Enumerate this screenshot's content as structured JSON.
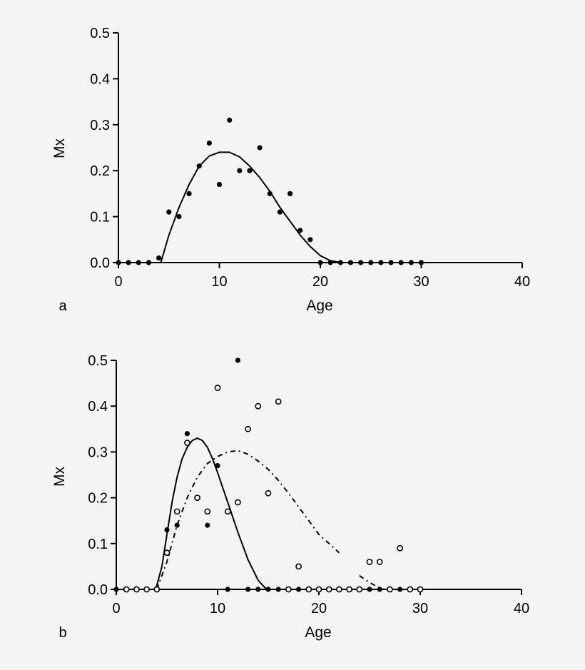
{
  "chart_data": [
    {
      "panel_label": "a",
      "type": "scatter",
      "xlabel": "Age",
      "ylabel": "Mx",
      "xlim": [
        0,
        40
      ],
      "ylim": [
        0,
        0.5
      ],
      "xticks": [
        "0",
        "10",
        "20",
        "30",
        "40"
      ],
      "yticks": [
        "0.0",
        "0.1",
        "0.2",
        "0.3",
        "0.4",
        "0.5"
      ],
      "series": [
        {
          "marker": "filled",
          "points": [
            [
              0,
              0
            ],
            [
              1,
              0
            ],
            [
              2,
              0
            ],
            [
              3,
              0
            ],
            [
              4,
              0.01
            ],
            [
              5,
              0.11
            ],
            [
              6,
              0.1
            ],
            [
              7,
              0.15
            ],
            [
              8,
              0.21
            ],
            [
              9,
              0.26
            ],
            [
              10,
              0.17
            ],
            [
              11,
              0.31
            ],
            [
              12,
              0.2
            ],
            [
              13,
              0.2
            ],
            [
              14,
              0.25
            ],
            [
              15,
              0.15
            ],
            [
              16,
              0.11
            ],
            [
              17,
              0.15
            ],
            [
              18,
              0.07
            ],
            [
              19,
              0.05
            ],
            [
              20,
              0
            ],
            [
              21,
              0
            ],
            [
              22,
              0
            ],
            [
              23,
              0
            ],
            [
              24,
              0
            ],
            [
              25,
              0
            ],
            [
              26,
              0
            ],
            [
              27,
              0
            ],
            [
              28,
              0
            ],
            [
              29,
              0
            ],
            [
              30,
              0
            ]
          ]
        }
      ],
      "curves": [
        {
          "style": "solid",
          "points": [
            [
              4.2,
              0
            ],
            [
              5,
              0.06
            ],
            [
              6,
              0.12
            ],
            [
              7,
              0.17
            ],
            [
              8,
              0.21
            ],
            [
              9,
              0.232
            ],
            [
              10,
              0.24
            ],
            [
              11,
              0.24
            ],
            [
              12,
              0.23
            ],
            [
              13,
              0.21
            ],
            [
              14,
              0.185
            ],
            [
              15,
              0.155
            ],
            [
              16,
              0.12
            ],
            [
              17,
              0.09
            ],
            [
              18,
              0.06
            ],
            [
              19,
              0.035
            ],
            [
              20,
              0.015
            ],
            [
              21,
              0.004
            ],
            [
              22,
              0
            ]
          ]
        }
      ]
    },
    {
      "panel_label": "b",
      "type": "scatter",
      "xlabel": "Age",
      "ylabel": "Mx",
      "xlim": [
        0,
        40
      ],
      "ylim": [
        0,
        0.5
      ],
      "xticks": [
        "0",
        "10",
        "20",
        "30",
        "40"
      ],
      "yticks": [
        "0.0",
        "0.1",
        "0.2",
        "0.3",
        "0.4",
        "0.5"
      ],
      "series": [
        {
          "marker": "filled",
          "points": [
            [
              0,
              0
            ],
            [
              1,
              0
            ],
            [
              2,
              0
            ],
            [
              3,
              0
            ],
            [
              4,
              0
            ],
            [
              5,
              0.13
            ],
            [
              6,
              0.14
            ],
            [
              7,
              0.34
            ],
            [
              8,
              0.2
            ],
            [
              9,
              0.14
            ],
            [
              10,
              0.27
            ],
            [
              11,
              0
            ],
            [
              12,
              0.5
            ],
            [
              13,
              0
            ],
            [
              14,
              0
            ],
            [
              15,
              0
            ],
            [
              16,
              0
            ],
            [
              17,
              0
            ],
            [
              18,
              0
            ],
            [
              19,
              0
            ],
            [
              20,
              0
            ],
            [
              21,
              0
            ],
            [
              22,
              0
            ],
            [
              23,
              0
            ],
            [
              24,
              0
            ],
            [
              25,
              0
            ],
            [
              26,
              0
            ],
            [
              27,
              0
            ],
            [
              28,
              0
            ],
            [
              29,
              0
            ]
          ]
        },
        {
          "marker": "open",
          "points": [
            [
              1,
              0
            ],
            [
              2,
              0
            ],
            [
              3,
              0
            ],
            [
              4,
              0
            ],
            [
              5,
              0.08
            ],
            [
              6,
              0.17
            ],
            [
              7,
              0.32
            ],
            [
              8,
              0.2
            ],
            [
              9,
              0.17
            ],
            [
              10,
              0.44
            ],
            [
              11,
              0.17
            ],
            [
              12,
              0.19
            ],
            [
              13,
              0.35
            ],
            [
              14,
              0.4
            ],
            [
              15,
              0.21
            ],
            [
              16,
              0.41
            ],
            [
              17,
              0
            ],
            [
              18,
              0.05
            ],
            [
              19,
              0
            ],
            [
              20,
              0
            ],
            [
              21,
              0
            ],
            [
              22,
              0
            ],
            [
              23,
              0
            ],
            [
              24,
              0
            ],
            [
              25,
              0.06
            ],
            [
              26,
              0.06
            ],
            [
              27,
              0
            ],
            [
              28,
              0.09
            ],
            [
              29,
              0
            ],
            [
              30,
              0
            ]
          ]
        }
      ],
      "curves": [
        {
          "style": "solid",
          "points": [
            [
              3.9,
              0
            ],
            [
              4.5,
              0.05
            ],
            [
              5,
              0.12
            ],
            [
              5.5,
              0.19
            ],
            [
              6,
              0.245
            ],
            [
              6.5,
              0.285
            ],
            [
              7,
              0.31
            ],
            [
              7.5,
              0.325
            ],
            [
              8,
              0.33
            ],
            [
              8.5,
              0.325
            ],
            [
              9,
              0.31
            ],
            [
              9.5,
              0.285
            ],
            [
              10,
              0.255
            ],
            [
              11,
              0.19
            ],
            [
              12,
              0.125
            ],
            [
              13,
              0.065
            ],
            [
              14,
              0.02
            ],
            [
              14.7,
              0.003
            ],
            [
              15,
              0
            ]
          ]
        },
        {
          "style": "dash-dot",
          "points": [
            [
              4,
              0
            ],
            [
              5,
              0.06
            ],
            [
              6,
              0.14
            ],
            [
              7,
              0.2
            ],
            [
              8,
              0.245
            ],
            [
              9,
              0.275
            ],
            [
              10,
              0.29
            ],
            [
              11,
              0.3
            ],
            [
              12,
              0.303
            ],
            [
              13,
              0.295
            ],
            [
              14,
              0.28
            ],
            [
              15,
              0.262
            ],
            [
              16,
              0.238
            ],
            [
              17,
              0.21
            ],
            [
              18,
              0.18
            ],
            [
              19,
              0.15
            ],
            [
              20,
              0.12
            ],
            [
              21,
              0.1
            ],
            [
              22,
              0.08
            ]
          ]
        },
        {
          "style": "dash-dot",
          "points": [
            [
              24,
              0.03
            ],
            [
              25,
              0.015
            ],
            [
              26,
              0.003
            ],
            [
              26.5,
              0
            ]
          ]
        }
      ]
    }
  ]
}
